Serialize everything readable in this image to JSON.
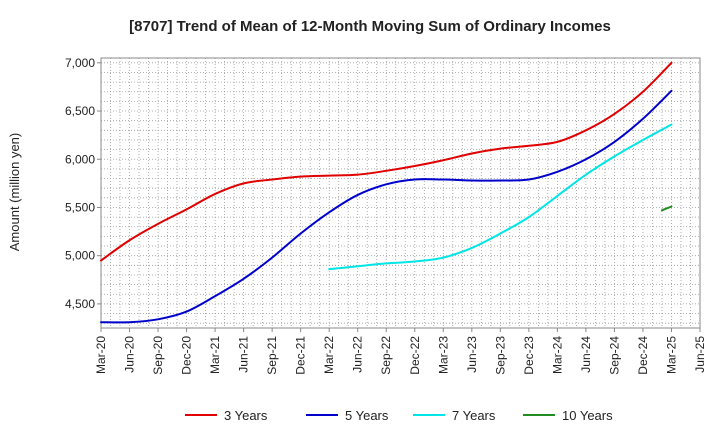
{
  "chart_data": {
    "type": "line",
    "title": "[8707]  Trend of Mean of 12-Month Moving Sum of Ordinary Incomes",
    "ylabel": "Amount (million yen)",
    "xlabel": "",
    "ylim": [
      4250,
      7050
    ],
    "yticks": [
      4500,
      5000,
      5500,
      6000,
      6500,
      7000
    ],
    "ytick_labels": [
      "4,500",
      "5,000",
      "5,500",
      "6,000",
      "6,500",
      "7,000"
    ],
    "x_range_months": [
      0,
      63
    ],
    "xticks": [
      0,
      3,
      6,
      9,
      12,
      15,
      18,
      21,
      24,
      27,
      30,
      33,
      36,
      39,
      42,
      45,
      48,
      51,
      54,
      57,
      60,
      63
    ],
    "xtick_labels": [
      "Mar-20",
      "Jun-20",
      "Sep-20",
      "Dec-20",
      "Mar-21",
      "Jun-21",
      "Sep-21",
      "Dec-21",
      "Mar-22",
      "Jun-22",
      "Sep-22",
      "Dec-22",
      "Mar-23",
      "Jun-23",
      "Sep-23",
      "Dec-23",
      "Mar-24",
      "Jun-24",
      "Sep-24",
      "Dec-24",
      "Mar-25",
      "Jun-25"
    ],
    "series": [
      {
        "name": "3 Years",
        "color": "#e00000",
        "x": [
          0,
          3,
          6,
          9,
          12,
          15,
          18,
          21,
          24,
          27,
          30,
          33,
          36,
          39,
          42,
          45,
          48,
          51,
          54,
          57,
          60
        ],
        "values": [
          4950,
          5160,
          5330,
          5480,
          5640,
          5750,
          5790,
          5820,
          5830,
          5840,
          5880,
          5930,
          5990,
          6060,
          6110,
          6140,
          6180,
          6300,
          6470,
          6700,
          7000
        ]
      },
      {
        "name": "5 Years",
        "color": "#0000cc",
        "x": [
          0,
          3,
          6,
          9,
          12,
          15,
          18,
          21,
          24,
          27,
          30,
          33,
          36,
          39,
          42,
          45,
          48,
          51,
          54,
          57,
          60
        ],
        "values": [
          4310,
          4310,
          4340,
          4420,
          4580,
          4760,
          4980,
          5230,
          5450,
          5630,
          5740,
          5790,
          5790,
          5780,
          5780,
          5790,
          5870,
          6000,
          6180,
          6420,
          6710
        ]
      },
      {
        "name": "7 Years",
        "color": "#00e5e5",
        "x": [
          24,
          27,
          30,
          33,
          36,
          39,
          42,
          45,
          48,
          51,
          54,
          57,
          60
        ],
        "values": [
          4860,
          4890,
          4920,
          4940,
          4980,
          5080,
          5230,
          5400,
          5620,
          5840,
          6030,
          6200,
          6360
        ]
      },
      {
        "name": "10 Years",
        "color": "#228b22",
        "x": [
          59,
          60
        ],
        "values": [
          5470,
          5510
        ]
      }
    ],
    "legend_position": "bottom"
  }
}
